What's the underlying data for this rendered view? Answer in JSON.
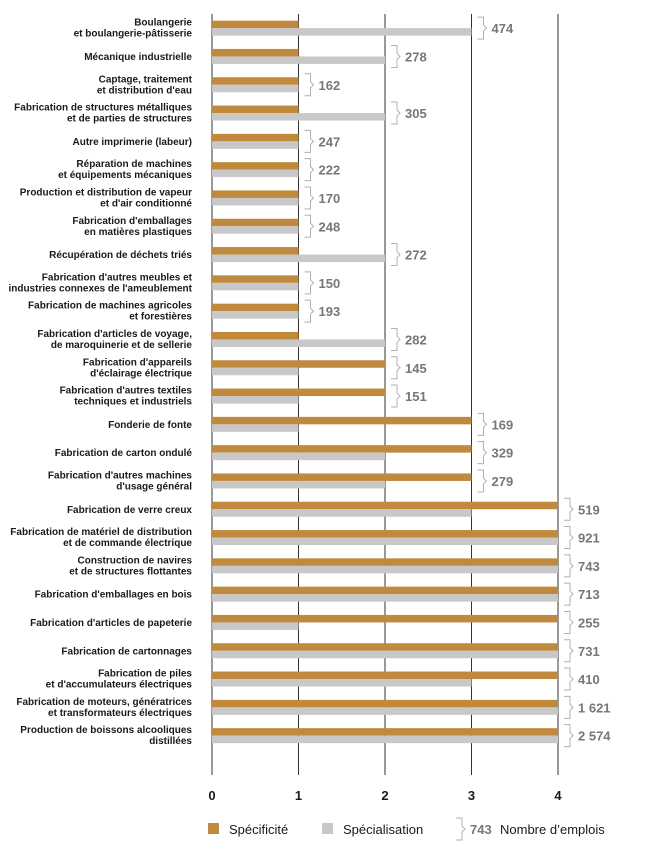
{
  "chart_data": {
    "type": "bar",
    "orientation": "horizontal",
    "categories": [
      [
        "Boulangerie",
        "et boulangerie-pâtisserie"
      ],
      [
        "Mécanique industrielle"
      ],
      [
        "Captage, traitement",
        "et distribution d'eau"
      ],
      [
        "Fabrication de structures métalliques",
        "et de parties de structures"
      ],
      [
        "Autre imprimerie (labeur)"
      ],
      [
        "Réparation de machines",
        "et équipements mécaniques"
      ],
      [
        "Production et distribution de vapeur",
        "et d'air conditionné"
      ],
      [
        "Fabrication d'emballages",
        "en matières plastiques"
      ],
      [
        "Récupération de déchets triés"
      ],
      [
        "Fabrication d'autres meubles et",
        "industries connexes de l'ameublement"
      ],
      [
        "Fabrication de machines agricoles",
        "et forestières"
      ],
      [
        "Fabrication d'articles de voyage,",
        "de maroquinerie et de sellerie"
      ],
      [
        "Fabrication d'appareils",
        "d'éclairage électrique"
      ],
      [
        "Fabrication d'autres textiles",
        "techniques et industriels"
      ],
      [
        "Fonderie de fonte"
      ],
      [
        "Fabrication de carton ondulé"
      ],
      [
        "Fabrication d'autres machines",
        "d'usage général"
      ],
      [
        "Fabrication de verre creux"
      ],
      [
        "Fabrication de matériel de distribution",
        "et de commande électrique"
      ],
      [
        "Construction de navires",
        "et de structures flottantes"
      ],
      [
        "Fabrication d'emballages en bois"
      ],
      [
        "Fabrication d'articles de papeterie"
      ],
      [
        "Fabrication de cartonnages"
      ],
      [
        "Fabrication de piles",
        "et d'accumulateurs électriques"
      ],
      [
        "Fabrication de moteurs, génératrices",
        "et transformateurs électriques"
      ],
      [
        "Production de boissons alcooliques",
        "distillées"
      ]
    ],
    "series": [
      {
        "name": "Spécificité",
        "color": "#c08a3e",
        "values": [
          1,
          1,
          1,
          1,
          1,
          1,
          1,
          1,
          1,
          1,
          1,
          1,
          2,
          2,
          3,
          3,
          3,
          4,
          4,
          4,
          4,
          4,
          4,
          4,
          4,
          4
        ]
      },
      {
        "name": "Spécialisation",
        "color": "#c8c8c8",
        "values": [
          3,
          2,
          1,
          2,
          1,
          1,
          1,
          1,
          2,
          1,
          1,
          2,
          1,
          1,
          1,
          2,
          2,
          3,
          4,
          4,
          4,
          1,
          4,
          3,
          4,
          4
        ]
      }
    ],
    "employment": {
      "name": "Nombre d’emplois",
      "values": [
        "474",
        "278",
        "162",
        "305",
        "247",
        "222",
        "170",
        "248",
        "272",
        "150",
        "193",
        "282",
        "145",
        "151",
        "169",
        "329",
        "279",
        "519",
        "921",
        "743",
        "713",
        "255",
        "731",
        "410",
        "1 621",
        "2 574"
      ]
    },
    "xlim": [
      0,
      4
    ],
    "xticks": [
      "0",
      "1",
      "2",
      "3",
      "4"
    ],
    "grid": true,
    "legend": {
      "position": "bottom",
      "sample_value": "743"
    },
    "title": "",
    "xlabel": "",
    "ylabel": ""
  }
}
